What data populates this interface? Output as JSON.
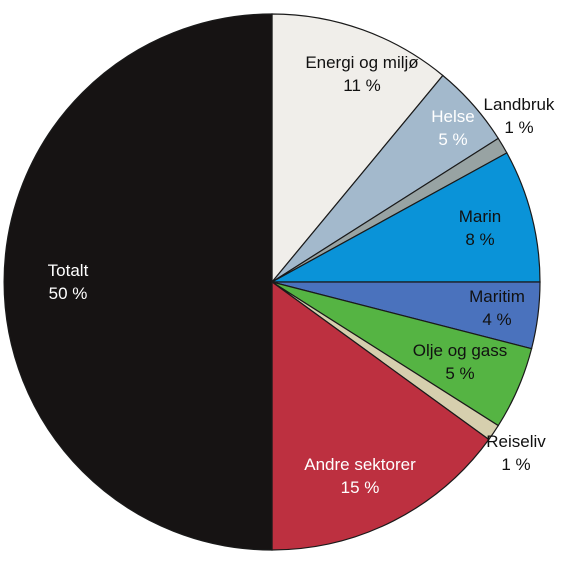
{
  "chart_data": {
    "type": "pie",
    "title": "",
    "start": "12 o'clock",
    "direction": "clockwise",
    "slices": [
      {
        "name": "Energi og miljø",
        "label": "11 %",
        "value": 11,
        "color": "#f0eeea",
        "text_color": "#111111"
      },
      {
        "name": "Helse",
        "label": "5 %",
        "value": 5,
        "color": "#a3b9cc",
        "text_color": "#ffffff"
      },
      {
        "name": "Landbruk",
        "label": "1 %",
        "value": 1,
        "color": "#98a3a3",
        "text_color": "#111111"
      },
      {
        "name": "Marin",
        "label": "8 %",
        "value": 8,
        "color": "#0a93d8",
        "text_color": "#111111"
      },
      {
        "name": "Maritim",
        "label": "4 %",
        "value": 4,
        "color": "#4a72bd",
        "text_color": "#111111"
      },
      {
        "name": "Olje og gass",
        "label": "5 %",
        "value": 5,
        "color": "#55b443",
        "text_color": "#111111"
      },
      {
        "name": "Reiseliv",
        "label": "1 %",
        "value": 1,
        "color": "#d6cfae",
        "text_color": "#111111"
      },
      {
        "name": "Andre sektorer",
        "label": "15 %",
        "value": 15,
        "color": "#bd3040",
        "text_color": "#ffffff"
      },
      {
        "name": "Totalt",
        "label": "50 %",
        "value": 50,
        "color": "#161313",
        "text_color": "#ffffff"
      }
    ]
  }
}
